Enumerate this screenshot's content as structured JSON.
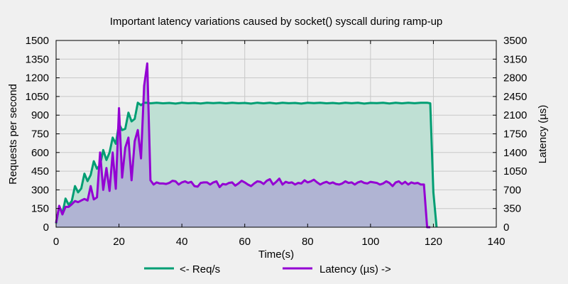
{
  "chart_data": {
    "type": "area",
    "title": "Important latency variations caused by socket() syscall during ramp-up",
    "xlabel": "Time(s)",
    "ylabel_left": "Requests per second",
    "ylabel_right": "Latency (µs)",
    "xlim": [
      0,
      140
    ],
    "ylim_left": [
      0,
      1500
    ],
    "ylim_right": [
      0,
      3500
    ],
    "x_ticks": [
      0,
      20,
      40,
      60,
      80,
      100,
      120,
      140
    ],
    "y_ticks_left": [
      0,
      150,
      300,
      450,
      600,
      750,
      900,
      1050,
      1200,
      1350,
      1500
    ],
    "y_ticks_right": [
      0,
      350,
      700,
      1050,
      1400,
      1750,
      2100,
      2450,
      2800,
      3150,
      3500
    ],
    "grid": true,
    "legend_position": "bottom",
    "series": [
      {
        "name": "<- Req/s",
        "axis": "left",
        "color": "#009e73",
        "fill": "#bfe0d4",
        "x": [
          0,
          1,
          2,
          3,
          4,
          5,
          6,
          7,
          8,
          9,
          10,
          11,
          12,
          13,
          14,
          15,
          16,
          17,
          18,
          19,
          20,
          21,
          22,
          23,
          24,
          25,
          26,
          27,
          28,
          29,
          30,
          32,
          34,
          36,
          38,
          40,
          42,
          44,
          46,
          48,
          50,
          52,
          54,
          56,
          58,
          60,
          62,
          64,
          66,
          68,
          70,
          72,
          74,
          76,
          78,
          80,
          82,
          84,
          86,
          88,
          90,
          92,
          94,
          96,
          98,
          100,
          102,
          104,
          106,
          108,
          110,
          112,
          114,
          116,
          118,
          119,
          120,
          121
        ],
        "values": [
          30,
          170,
          110,
          230,
          180,
          210,
          330,
          280,
          310,
          430,
          370,
          420,
          530,
          470,
          500,
          620,
          540,
          600,
          720,
          670,
          830,
          780,
          790,
          920,
          850,
          870,
          1000,
          980,
          1000,
          1000,
          995,
          1000,
          995,
          998,
          993,
          1000,
          996,
          998,
          994,
          1000,
          997,
          999,
          995,
          1000,
          996,
          998,
          993,
          1000,
          995,
          999,
          994,
          1000,
          996,
          998,
          993,
          999,
          997,
          1000,
          995,
          998,
          994,
          1000,
          996,
          999,
          993,
          998,
          997,
          1000,
          994,
          999,
          995,
          1000,
          996,
          999,
          1000,
          995,
          280,
          0
        ]
      },
      {
        "name": "Latency (µs) ->",
        "axis": "right",
        "color": "#9400d3",
        "fill": "#b0b4d3",
        "x": [
          0,
          1,
          2,
          3,
          4,
          5,
          6,
          7,
          8,
          9,
          10,
          11,
          12,
          13,
          14,
          15,
          16,
          17,
          18,
          19,
          20,
          21,
          22,
          23,
          24,
          25,
          26,
          27,
          28,
          29,
          30,
          31,
          32,
          33,
          34,
          35,
          36,
          37,
          38,
          39,
          40,
          41,
          42,
          43,
          44,
          45,
          46,
          47,
          48,
          49,
          50,
          51,
          52,
          53,
          54,
          55,
          56,
          57,
          58,
          59,
          60,
          61,
          62,
          63,
          64,
          65,
          66,
          67,
          68,
          69,
          70,
          71,
          72,
          73,
          74,
          75,
          76,
          77,
          78,
          79,
          80,
          81,
          82,
          83,
          84,
          85,
          86,
          87,
          88,
          89,
          90,
          91,
          92,
          93,
          94,
          95,
          96,
          97,
          98,
          99,
          100,
          101,
          102,
          103,
          104,
          105,
          106,
          107,
          108,
          109,
          110,
          111,
          112,
          113,
          114,
          115,
          116,
          117,
          118,
          119,
          120,
          121
        ],
        "values": [
          80,
          400,
          240,
          380,
          380,
          430,
          490,
          470,
          500,
          530,
          500,
          770,
          520,
          560,
          1400,
          700,
          1110,
          680,
          1400,
          720,
          2230,
          930,
          1490,
          1680,
          880,
          1610,
          1820,
          1290,
          2650,
          3070,
          880,
          800,
          840,
          820,
          820,
          810,
          830,
          870,
          860,
          800,
          840,
          860,
          830,
          850,
          770,
          760,
          830,
          840,
          840,
          800,
          840,
          860,
          750,
          810,
          800,
          830,
          840,
          780,
          820,
          870,
          840,
          800,
          770,
          820,
          860,
          850,
          810,
          870,
          900,
          800,
          850,
          910,
          800,
          850,
          830,
          840,
          800,
          830,
          820,
          880,
          840,
          860,
          890,
          840,
          800,
          830,
          850,
          820,
          840,
          810,
          800,
          820,
          860,
          830,
          840,
          800,
          840,
          860,
          830,
          820,
          850,
          840,
          830,
          800,
          820,
          860,
          830,
          770,
          840,
          860,
          810,
          850,
          800,
          840,
          820,
          830,
          800,
          800,
          0,
          0,
          null,
          null
        ]
      }
    ]
  }
}
